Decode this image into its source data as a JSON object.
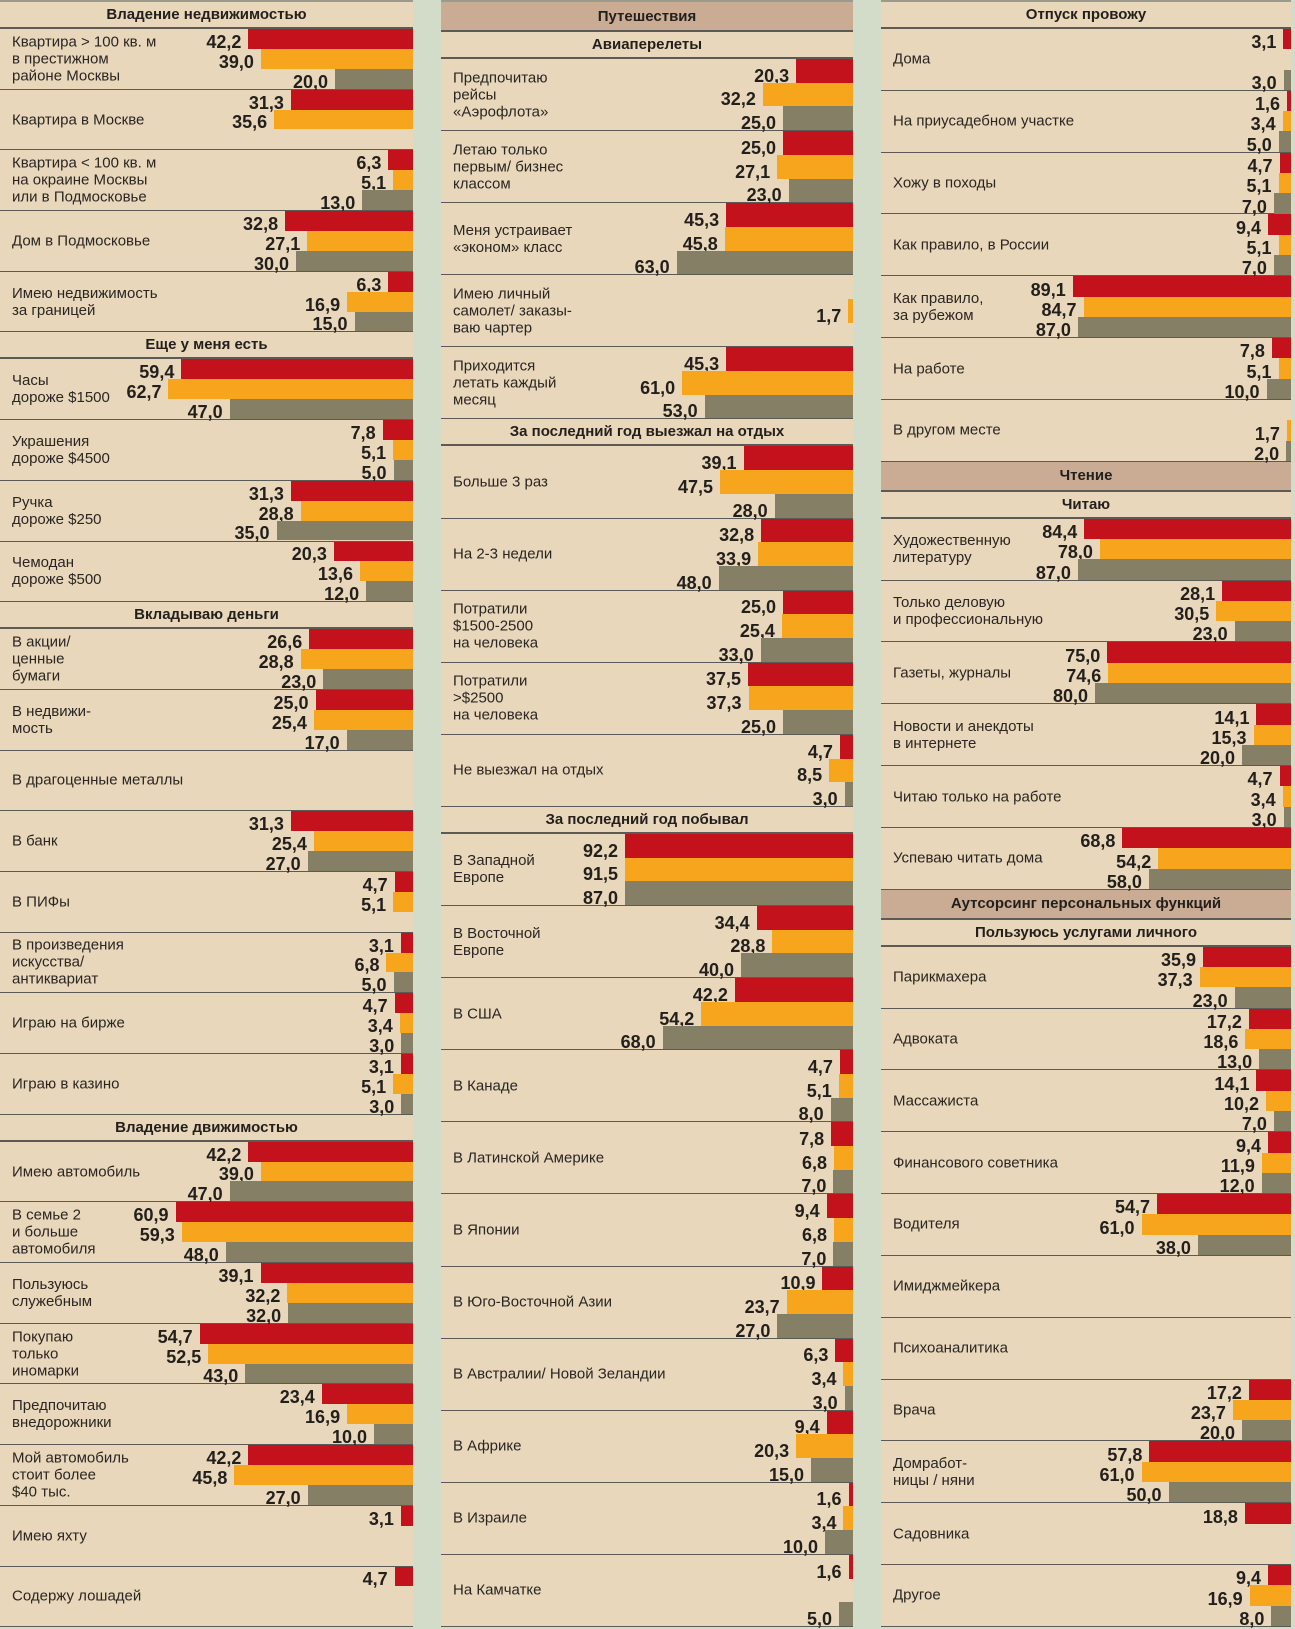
{
  "colors": {
    "red": "#c4121c",
    "orange": "#f6a51c",
    "gray": "#857f66"
  },
  "columns": [
    {
      "items": [
        {
          "type": "header",
          "text": "Владение недвижимостью",
          "tan": false
        },
        {
          "type": "row",
          "label": "Квартира > 100 кв. м\nв престижном\nрайоне Москвы",
          "values": [
            "42,2",
            "39,0",
            "20,0"
          ]
        },
        {
          "type": "row",
          "label": "Квартира в Москве",
          "values": [
            "31,3",
            "35,6",
            null
          ]
        },
        {
          "type": "row",
          "label": "Квартира < 100 кв. м\nна окраине Москвы\nили в Подмосковье",
          "values": [
            "6,3",
            "5,1",
            "13,0"
          ]
        },
        {
          "type": "row",
          "label": "Дом в Подмосковье",
          "values": [
            "32,8",
            "27,1",
            "30,0"
          ]
        },
        {
          "type": "row",
          "label": "Имею недвижимость\nза границей",
          "values": [
            "6,3",
            "16,9",
            "15,0"
          ]
        },
        {
          "type": "header",
          "text": "Еще у меня есть",
          "tan": false
        },
        {
          "type": "row",
          "label": "Часы\nдороже $1500",
          "values": [
            "59,4",
            "62,7",
            "47,0"
          ]
        },
        {
          "type": "row",
          "label": "Украшения\nдороже $4500",
          "values": [
            "7,8",
            "5,1",
            "5,0"
          ]
        },
        {
          "type": "row",
          "label": "Ручка\nдороже $250",
          "values": [
            "31,3",
            "28,8",
            "35,0"
          ]
        },
        {
          "type": "row",
          "label": "Чемодан\nдороже $500",
          "values": [
            "20,3",
            "13,6",
            "12,0"
          ]
        },
        {
          "type": "header",
          "text": "Вкладываю деньги",
          "tan": false
        },
        {
          "type": "row",
          "label": "В акции/\nценные\nбумаги",
          "values": [
            "26,6",
            "28,8",
            "23,0"
          ]
        },
        {
          "type": "row",
          "label": "В недвижи-\nмость",
          "values": [
            "25,0",
            "25,4",
            "17,0"
          ]
        },
        {
          "type": "row",
          "label": "В драгоценные металлы",
          "values": [
            null,
            null,
            null
          ]
        },
        {
          "type": "row",
          "label": "В банк",
          "values": [
            "31,3",
            "25,4",
            "27,0"
          ]
        },
        {
          "type": "row",
          "label": "В ПИФы",
          "values": [
            "4,7",
            "5,1",
            null
          ]
        },
        {
          "type": "row",
          "label": "В произведения\nискусства/\nантиквариат",
          "values": [
            "3,1",
            "6,8",
            "5,0"
          ]
        },
        {
          "type": "row",
          "label": "Играю на бирже",
          "values": [
            "4,7",
            "3,4",
            "3,0"
          ]
        },
        {
          "type": "row",
          "label": "Играю в казино",
          "values": [
            "3,1",
            "5,1",
            "3,0"
          ]
        },
        {
          "type": "header",
          "text": "Владение движимостью",
          "tan": false
        },
        {
          "type": "row",
          "label": "Имею автомобиль",
          "values": [
            "42,2",
            "39,0",
            "47,0"
          ]
        },
        {
          "type": "row",
          "label": "В семье 2\nи больше\nавтомобиля",
          "values": [
            "60,9",
            "59,3",
            "48,0"
          ]
        },
        {
          "type": "row",
          "label": "Пользуюсь\nслужебным",
          "values": [
            "39,1",
            "32,2",
            "32,0"
          ]
        },
        {
          "type": "row",
          "label": "Покупаю\nтолько\nиномарки",
          "values": [
            "54,7",
            "52,5",
            "43,0"
          ]
        },
        {
          "type": "row",
          "label": "Предпочитаю\nвнедорожники",
          "values": [
            "23,4",
            "16,9",
            "10,0"
          ]
        },
        {
          "type": "row",
          "label": "Мой автомобиль\nстоит более\n$40 тыс.",
          "values": [
            "42,2",
            "45,8",
            "27,0"
          ]
        },
        {
          "type": "row",
          "label": "Имею яхту",
          "values": [
            "3,1",
            null,
            null
          ]
        },
        {
          "type": "row",
          "label": "Содержу лошадей",
          "values": [
            "4,7",
            null,
            null
          ]
        }
      ]
    },
    {
      "items": [
        {
          "type": "header",
          "text": "Путешествия",
          "tan": true
        },
        {
          "type": "header",
          "text": "Авиаперелеты",
          "tan": false
        },
        {
          "type": "row",
          "label": "Предпочитаю\nрейсы\n«Аэрофлота»",
          "values": [
            "20,3",
            "32,2",
            "25,0"
          ]
        },
        {
          "type": "row",
          "label": "Летаю только\nпервым/ бизнес\nклассом",
          "values": [
            "25,0",
            "27,1",
            "23,0"
          ]
        },
        {
          "type": "row",
          "label": "Меня устраивает\n«эконом» класс",
          "values": [
            "45,3",
            "45,8",
            "63,0"
          ]
        },
        {
          "type": "row",
          "label": "Имею личный\nсамолет/ заказы-\nваю чартер",
          "values": [
            null,
            "1,7",
            null
          ]
        },
        {
          "type": "row",
          "label": "Приходится\nлетать каждый\nмесяц",
          "values": [
            "45,3",
            "61,0",
            "53,0"
          ]
        },
        {
          "type": "header",
          "text": "За последний год выезжал на отдых",
          "tan": false
        },
        {
          "type": "row",
          "label": "Больше 3 раз",
          "values": [
            "39,1",
            "47,5",
            "28,0"
          ]
        },
        {
          "type": "row",
          "label": "На 2-3 недели",
          "values": [
            "32,8",
            "33,9",
            "48,0"
          ]
        },
        {
          "type": "row",
          "label": "Потратили\n$1500-2500\nна человека",
          "values": [
            "25,0",
            "25,4",
            "33,0"
          ]
        },
        {
          "type": "row",
          "label": "Потратили\n>$2500\nна человека",
          "values": [
            "37,5",
            "37,3",
            "25,0"
          ]
        },
        {
          "type": "row",
          "label": "Не выезжал на отдых",
          "values": [
            "4,7",
            "8,5",
            "3,0"
          ]
        },
        {
          "type": "header",
          "text": "За последний год побывал",
          "tan": false
        },
        {
          "type": "row",
          "label": "В Западной\nЕвропе",
          "values": [
            "92,2",
            "91,5",
            "87,0"
          ]
        },
        {
          "type": "row",
          "label": "В Восточной\nЕвропе",
          "values": [
            "34,4",
            "28,8",
            "40,0"
          ]
        },
        {
          "type": "row",
          "label": "В США",
          "values": [
            "42,2",
            "54,2",
            "68,0"
          ]
        },
        {
          "type": "row",
          "label": "В Канаде",
          "values": [
            "4,7",
            "5,1",
            "8,0"
          ]
        },
        {
          "type": "row",
          "label": "В Латинской Америке",
          "values": [
            "7,8",
            "6,8",
            "7,0"
          ]
        },
        {
          "type": "row",
          "label": "В Японии",
          "values": [
            "9,4",
            "6,8",
            "7,0"
          ]
        },
        {
          "type": "row",
          "label": "В Юго-Восточной Азии",
          "values": [
            "10,9",
            "23,7",
            "27,0"
          ]
        },
        {
          "type": "row",
          "label": "В Австралии/ Новой Зеландии",
          "values": [
            "6,3",
            "3,4",
            "3,0"
          ]
        },
        {
          "type": "row",
          "label": "В Африке",
          "values": [
            "9,4",
            "20,3",
            "15,0"
          ]
        },
        {
          "type": "row",
          "label": "В Израиле",
          "values": [
            "1,6",
            "3,4",
            "10,0"
          ]
        },
        {
          "type": "row",
          "label": "На Камчатке",
          "values": [
            "1,6",
            null,
            "5,0"
          ]
        }
      ]
    },
    {
      "items": [
        {
          "type": "header",
          "text": "Отпуск провожу",
          "tan": false
        },
        {
          "type": "row",
          "label": "Дома",
          "values": [
            "3,1",
            null,
            "3,0"
          ]
        },
        {
          "type": "row",
          "label": "На приусадебном участке",
          "values": [
            "1,6",
            "3,4",
            "5,0"
          ]
        },
        {
          "type": "row",
          "label": "Хожу в походы",
          "values": [
            "4,7",
            "5,1",
            "7,0"
          ]
        },
        {
          "type": "row",
          "label": "Как правило, в России",
          "values": [
            "9,4",
            "5,1",
            "7,0"
          ]
        },
        {
          "type": "row",
          "label": "Как правило,\nза рубежом",
          "values": [
            "89,1",
            "84,7",
            "87,0"
          ]
        },
        {
          "type": "row",
          "label": "На работе",
          "values": [
            "7,8",
            "5,1",
            "10,0"
          ]
        },
        {
          "type": "row",
          "label": "В другом месте",
          "values": [
            null,
            "1,7",
            "2,0"
          ]
        },
        {
          "type": "header",
          "text": "Чтение",
          "tan": true
        },
        {
          "type": "header",
          "text": "Читаю",
          "tan": false
        },
        {
          "type": "row",
          "label": "Художественную\nлитературу",
          "values": [
            "84,4",
            "78,0",
            "87,0"
          ]
        },
        {
          "type": "row",
          "label": "Только деловую\nи профессиональную",
          "values": [
            "28,1",
            "30,5",
            "23,0"
          ]
        },
        {
          "type": "row",
          "label": "Газеты, журналы",
          "values": [
            "75,0",
            "74,6",
            "80,0"
          ]
        },
        {
          "type": "row",
          "label": "Новости и анекдоты\nв интернете",
          "values": [
            "14,1",
            "15,3",
            "20,0"
          ]
        },
        {
          "type": "row",
          "label": "Читаю только на работе",
          "values": [
            "4,7",
            "3,4",
            "3,0"
          ]
        },
        {
          "type": "row",
          "label": "Успеваю читать дома",
          "values": [
            "68,8",
            "54,2",
            "58,0"
          ]
        },
        {
          "type": "header",
          "text": "Аутсорсинг персональных функций",
          "tan": true
        },
        {
          "type": "header",
          "text": "Пользуюсь услугами личного",
          "tan": false
        },
        {
          "type": "row",
          "label": "Парикмахера",
          "values": [
            "35,9",
            "37,3",
            "23,0"
          ]
        },
        {
          "type": "row",
          "label": "Адвоката",
          "values": [
            "17,2",
            "18,6",
            "13,0"
          ]
        },
        {
          "type": "row",
          "label": "Массажиста",
          "values": [
            "14,1",
            "10,2",
            "7,0"
          ]
        },
        {
          "type": "row",
          "label": "Финансового советника",
          "values": [
            "9,4",
            "11,9",
            "12,0"
          ]
        },
        {
          "type": "row",
          "label": "Водителя",
          "values": [
            "54,7",
            "61,0",
            "38,0"
          ]
        },
        {
          "type": "row",
          "label": "Имиджмейкера",
          "values": [
            null,
            null,
            null
          ]
        },
        {
          "type": "row",
          "label": "Психоаналитика",
          "values": [
            null,
            null,
            null
          ]
        },
        {
          "type": "row",
          "label": "Врача",
          "values": [
            "17,2",
            "23,7",
            "20,0"
          ]
        },
        {
          "type": "row",
          "label": "Домработ-\nницы / няни",
          "values": [
            "57,8",
            "61,0",
            "50,0"
          ]
        },
        {
          "type": "row",
          "label": "Садовника",
          "values": [
            "18,8",
            null,
            null
          ]
        },
        {
          "type": "row",
          "label": "Другое",
          "values": [
            "9,4",
            "16,9",
            "8,0"
          ]
        }
      ]
    }
  ]
}
